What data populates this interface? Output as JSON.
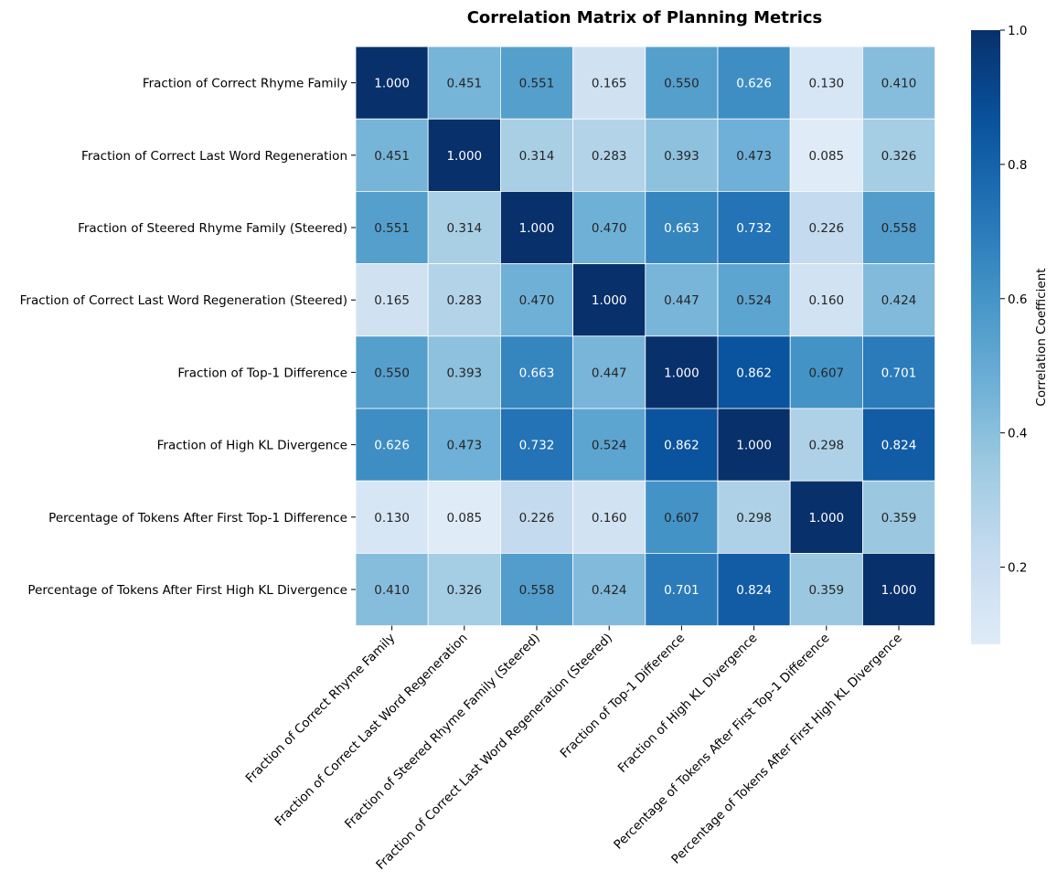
{
  "chart_data": {
    "type": "heatmap",
    "title": "Correlation Matrix of Planning Metrics",
    "labels": [
      "Fraction of Correct Rhyme Family",
      "Fraction of Correct Last Word Regeneration",
      "Fraction of Steered Rhyme Family (Steered)",
      "Fraction of Correct Last Word Regeneration (Steered)",
      "Fraction of Top-1 Difference",
      "Fraction of High KL Divergence",
      "Percentage of Tokens After First Top-1 Difference",
      "Percentage of Tokens After First High KL Divergence"
    ],
    "matrix": [
      [
        1.0,
        0.451,
        0.551,
        0.165,
        0.55,
        0.626,
        0.13,
        0.41
      ],
      [
        0.451,
        1.0,
        0.314,
        0.283,
        0.393,
        0.473,
        0.085,
        0.326
      ],
      [
        0.551,
        0.314,
        1.0,
        0.47,
        0.663,
        0.732,
        0.226,
        0.558
      ],
      [
        0.165,
        0.283,
        0.47,
        1.0,
        0.447,
        0.524,
        0.16,
        0.424
      ],
      [
        0.55,
        0.393,
        0.663,
        0.447,
        1.0,
        0.862,
        0.607,
        0.701
      ],
      [
        0.626,
        0.473,
        0.732,
        0.524,
        0.862,
        1.0,
        0.298,
        0.824
      ],
      [
        0.13,
        0.085,
        0.226,
        0.16,
        0.607,
        0.298,
        1.0,
        0.359
      ],
      [
        0.41,
        0.326,
        0.558,
        0.424,
        0.701,
        0.824,
        0.359,
        1.0
      ]
    ],
    "value_format": "3 decimals",
    "colormap": "Blues",
    "colorbar": {
      "label": "Correlation Coefficient",
      "range": [
        0.085,
        1.0
      ],
      "ticks": [
        0.2,
        0.4,
        0.6,
        0.8,
        1.0
      ],
      "tick_labels": [
        "0.2",
        "0.4",
        "0.6",
        "0.8",
        "1.0"
      ]
    }
  }
}
